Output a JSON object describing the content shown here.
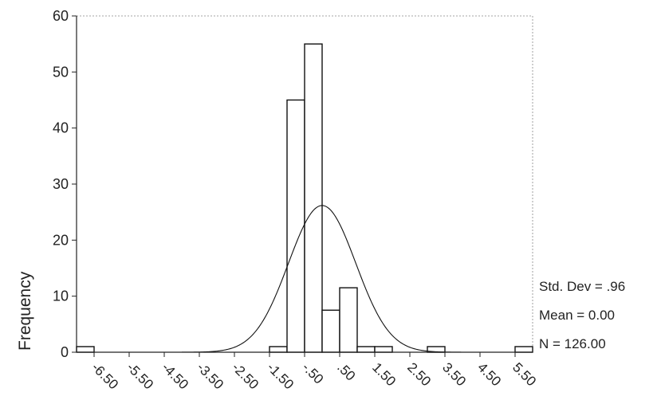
{
  "chart_data": {
    "type": "bar",
    "title": "",
    "xlabel": "",
    "ylabel": "Frequency",
    "ylim": [
      0,
      60
    ],
    "y_ticks": [
      0,
      10,
      20,
      30,
      40,
      50,
      60
    ],
    "x_ticks": [
      "-6.50",
      "-5.50",
      "-4.50",
      "-3.50",
      "-2.50",
      "-1.50",
      "-.50",
      ".50",
      "1.50",
      "2.50",
      "3.50",
      "4.50",
      "5.50"
    ],
    "bin_width": 0.5,
    "bins": [
      {
        "center": -6.75,
        "count": 1
      },
      {
        "center": -1.25,
        "count": 1
      },
      {
        "center": -0.75,
        "count": 45
      },
      {
        "center": -0.25,
        "count": 55
      },
      {
        "center": 0.25,
        "count": 7.5
      },
      {
        "center": 0.75,
        "count": 11.5
      },
      {
        "center": 1.25,
        "count": 1
      },
      {
        "center": 1.75,
        "count": 1
      },
      {
        "center": 3.25,
        "count": 1
      },
      {
        "center": 5.75,
        "count": 1
      }
    ],
    "normal_curve": {
      "mean": 0.0,
      "std": 0.96,
      "n": 126
    },
    "stats": {
      "std_dev": "Std. Dev = .96",
      "mean": "Mean = 0.00",
      "n": "N = 126.00"
    },
    "grid": false,
    "legend": "none"
  }
}
